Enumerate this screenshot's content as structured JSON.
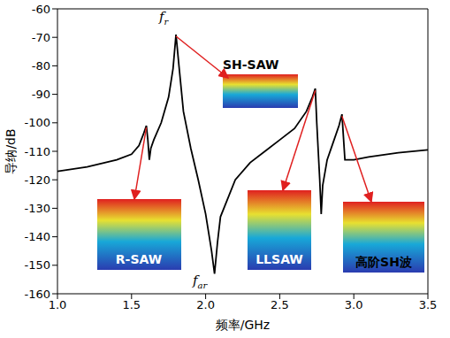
{
  "chart_data": {
    "type": "line",
    "xlabel": "频率/GHz",
    "ylabel": "导纳/dB",
    "x": [
      1.0,
      1.2,
      1.4,
      1.5,
      1.55,
      1.58,
      1.6,
      1.61,
      1.62,
      1.63,
      1.65,
      1.7,
      1.75,
      1.78,
      1.8,
      1.82,
      1.85,
      1.9,
      1.95,
      2.0,
      2.04,
      2.06,
      2.08,
      2.1,
      2.2,
      2.3,
      2.4,
      2.5,
      2.6,
      2.68,
      2.72,
      2.74,
      2.75,
      2.77,
      2.78,
      2.79,
      2.82,
      2.86,
      2.9,
      2.92,
      2.93,
      2.94,
      2.96,
      3.0,
      3.1,
      3.3,
      3.5
    ],
    "values": [
      -117,
      -115.5,
      -113,
      -111,
      -108,
      -104,
      -101,
      -106,
      -113,
      -109,
      -106,
      -100,
      -91,
      -81,
      -69,
      -80,
      -96,
      -109,
      -120,
      -132,
      -145,
      -153,
      -142,
      -133,
      -120,
      -114,
      -110,
      -106,
      -102,
      -96,
      -91,
      -88,
      -100,
      -120,
      -132,
      -122,
      -113,
      -107,
      -101,
      -97,
      -105,
      -113,
      -113,
      -113,
      -112,
      -110.5,
      -109.5
    ],
    "color": "#000000",
    "xlim": [
      1.0,
      3.5
    ],
    "ylim": [
      -160,
      -60
    ],
    "xticks": [
      {
        "value": 1.0,
        "label": "1.0"
      },
      {
        "value": 1.5,
        "label": "1.5"
      },
      {
        "value": 2.0,
        "label": "2.0"
      },
      {
        "value": 2.5,
        "label": "2.5"
      },
      {
        "value": 3.0,
        "label": "3.0"
      },
      {
        "value": 3.5,
        "label": "3.5"
      }
    ],
    "yticks": [
      -160,
      -150,
      -140,
      -130,
      -120,
      -110,
      -100,
      -90,
      -80,
      -70,
      -60
    ],
    "grid": false,
    "annotations": [
      {
        "text": "f",
        "subscript": "r",
        "x": 1.8,
        "y": -69
      },
      {
        "text": "f",
        "subscript": "ar",
        "x": 2.06,
        "y": -153
      },
      {
        "text": "SH-SAW",
        "x": 1.8,
        "y": -69
      },
      {
        "text": "R-SAW",
        "x": 1.6,
        "y": -101
      },
      {
        "text": "LLSAW",
        "x": 2.74,
        "y": -88
      },
      {
        "text": "高阶SH波",
        "x": 2.92,
        "y": -97
      }
    ]
  }
}
